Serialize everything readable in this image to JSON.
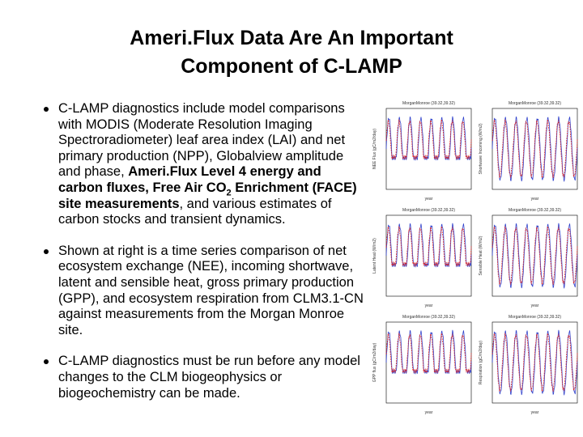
{
  "title": {
    "lines": [
      "Ameri.Flux Data Are An Important",
      "Component of C-LAMP"
    ]
  },
  "bullets": [
    {
      "segments": [
        {
          "text": "C-LAMP diagnostics include model comparisons with MODIS (Moderate Resolution Imaging Spectroradiometer) leaf area index (LAI) and net primary production (NPP), Globalview amplitude and phase, ",
          "bold": false
        },
        {
          "text": "Ameri.Flux Level 4 energy and carbon fluxes, Free Air CO",
          "bold": true
        },
        {
          "text": "2",
          "bold": true,
          "sub": true
        },
        {
          "text": " Enrichment (FACE) site measurements",
          "bold": true
        },
        {
          "text": ", and various estimates of carbon stocks and transient dynamics.",
          "bold": false
        }
      ]
    },
    {
      "segments": [
        {
          "text": "Shown at right is a time series comparison of net ecosystem exchange (NEE), incoming shortwave, latent and sensible heat, gross primary production (GPP), and ecosystem respiration from CLM3.1-CN against measurements from the Morgan Monroe site.",
          "bold": false
        }
      ]
    },
    {
      "segments": [
        {
          "text": "C-LAMP diagnostics must be run before any model changes to the CLM biogeophysics or biogeochemistry can be made.",
          "bold": false
        }
      ]
    }
  ],
  "panels": [
    {
      "title": "MorganMonroe (39.32,39.32)",
      "ylabel": "NEE Flux (gC/m2/day)",
      "xlabel": "year"
    },
    {
      "title": "MorganMonroe (39.32,39.32)",
      "ylabel": "Shortwave Incoming (W/m2)",
      "xlabel": "year"
    },
    {
      "title": "MorganMonroe (39.32,39.32)",
      "ylabel": "Latent Heat (W/m2)",
      "xlabel": "year"
    },
    {
      "title": "MorganMonroe (39.32,39.32)",
      "ylabel": "Sensible Heat (W/m2)",
      "xlabel": "year"
    },
    {
      "title": "MorganMonroe (39.32,39.32)",
      "ylabel": "GPP flux (gC/m2/day)",
      "xlabel": "year"
    },
    {
      "title": "MorganMonroe (39.32,39.32)",
      "ylabel": "Respiration (gC/m2/day)",
      "xlabel": "year"
    }
  ]
}
